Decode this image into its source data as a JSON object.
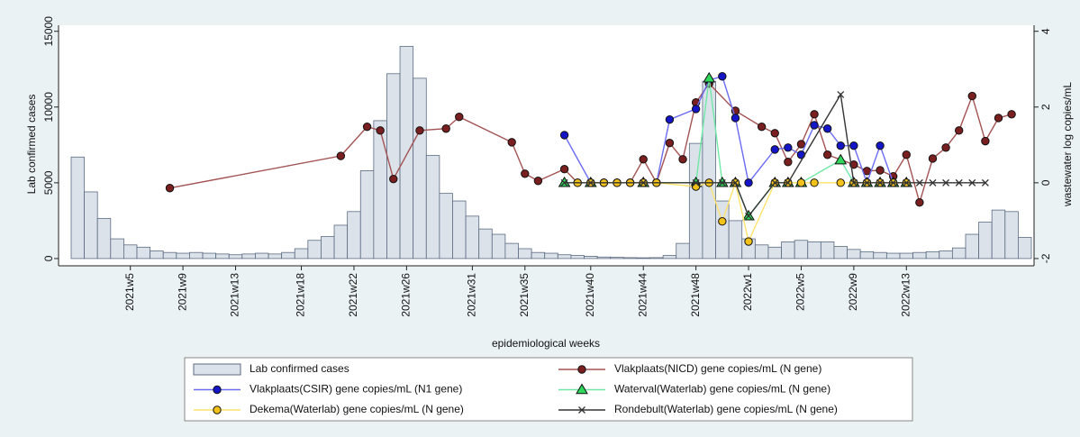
{
  "chart_data": {
    "type": "bar",
    "xlabel": "epidemiological weeks",
    "ylabel": "Lab confirmed cases",
    "y2label": "wastewater log copies/mL",
    "categories": [
      null,
      null,
      null,
      null,
      "2021w5",
      null,
      null,
      null,
      "2021w9",
      null,
      null,
      null,
      "2021w13",
      null,
      null,
      null,
      null,
      "2021w18",
      null,
      null,
      null,
      "2021w22",
      null,
      null,
      null,
      "2021w26",
      null,
      null,
      null,
      null,
      "2021w31",
      null,
      null,
      null,
      "2021w35",
      null,
      null,
      null,
      null,
      "2021w40",
      null,
      null,
      null,
      "2021w44",
      null,
      null,
      null,
      "2021w48",
      null,
      null,
      null,
      "2022w1",
      null,
      null,
      null,
      "2022w5",
      null,
      null,
      null,
      "2022w9",
      null,
      null,
      null,
      "2022w13",
      null,
      null,
      null,
      null,
      null,
      null,
      null,
      null,
      null
    ],
    "ylim": [
      -480,
      15400
    ],
    "yticks": [
      0,
      5000,
      10000,
      15000
    ],
    "y2lim": [
      -2.192,
      4.16
    ],
    "y2ticks": [
      -2,
      0,
      2,
      4
    ],
    "connect_missing": true,
    "series": [
      {
        "name": "Lab confirmed cases",
        "type": "bar",
        "color": "#dce2ea",
        "edge": "#5b6b82",
        "values": [
          6700,
          4400,
          2650,
          1300,
          900,
          750,
          500,
          400,
          350,
          400,
          350,
          300,
          250,
          300,
          350,
          300,
          400,
          650,
          1200,
          1450,
          2200,
          3100,
          5800,
          9100,
          12200,
          14000,
          11900,
          6800,
          4300,
          3800,
          2800,
          1950,
          1600,
          1000,
          650,
          400,
          350,
          250,
          200,
          150,
          100,
          80,
          60,
          50,
          60,
          200,
          1000,
          7600,
          11700,
          3800,
          2500,
          1300,
          900,
          750,
          1100,
          1200,
          1100,
          1100,
          800,
          600,
          450,
          400,
          350,
          350,
          400,
          450,
          500,
          700,
          1600,
          2400,
          3200,
          3100,
          1400
        ]
      },
      {
        "name": "Vlakplaats(NICD) gene copies/mL (N gene)",
        "type": "line",
        "axis": "y2",
        "color": "#a35353",
        "marker": "circle",
        "marker_color": "#7a1f1f",
        "values": [
          null,
          null,
          null,
          null,
          null,
          null,
          null,
          -0.14,
          null,
          null,
          null,
          null,
          null,
          null,
          null,
          null,
          null,
          null,
          null,
          null,
          0.71,
          null,
          1.48,
          1.38,
          0.1,
          null,
          1.38,
          null,
          1.43,
          1.74,
          null,
          null,
          null,
          1.07,
          0.24,
          0.05,
          null,
          0.36,
          0,
          0,
          0,
          0,
          0,
          0.62,
          0,
          1.05,
          0.62,
          2.12,
          2.62,
          null,
          1.9,
          null,
          1.48,
          1.31,
          0.55,
          1.02,
          1.81,
          0.74,
          null,
          0.48,
          0.31,
          0.33,
          0.17,
          0.74,
          -0.52,
          0.64,
          0.93,
          1.38,
          2.29,
          1.1,
          1.71,
          1.81,
          null
        ]
      },
      {
        "name": "Vlakplaats(CSIR) gene copies/mL (N1 gene)",
        "type": "line",
        "axis": "y2",
        "color": "#6a6cf5",
        "marker": "circle",
        "marker_color": "#1515c8",
        "values": [
          null,
          null,
          null,
          null,
          null,
          null,
          null,
          null,
          null,
          null,
          null,
          null,
          null,
          null,
          null,
          null,
          null,
          null,
          null,
          null,
          null,
          null,
          null,
          null,
          null,
          null,
          null,
          null,
          null,
          null,
          null,
          null,
          null,
          null,
          null,
          null,
          null,
          1.26,
          null,
          0,
          0,
          0,
          0,
          0,
          0,
          1.67,
          null,
          1.95,
          2.71,
          2.81,
          1.71,
          0,
          null,
          0.88,
          0.93,
          0.74,
          1.52,
          1.43,
          0.98,
          0.98,
          0,
          0.98,
          0,
          null,
          null,
          null,
          null,
          null,
          null,
          null,
          null,
          null,
          null
        ]
      },
      {
        "name": "Waterval(Waterlab) gene copies/mL (N gene)",
        "type": "line",
        "axis": "y2",
        "color": "#6fe8a6",
        "marker": "triangle",
        "marker_color": "#2fd85a",
        "values": [
          null,
          null,
          null,
          null,
          null,
          null,
          null,
          null,
          null,
          null,
          null,
          null,
          null,
          null,
          null,
          null,
          null,
          null,
          null,
          null,
          null,
          null,
          null,
          null,
          null,
          null,
          null,
          null,
          null,
          null,
          null,
          null,
          null,
          null,
          null,
          null,
          null,
          0,
          null,
          0,
          null,
          null,
          null,
          0,
          null,
          null,
          null,
          0,
          2.76,
          0,
          0,
          -0.88,
          null,
          0,
          0,
          0,
          null,
          null,
          0.6,
          0,
          0,
          0,
          0,
          0,
          null,
          null,
          null,
          null,
          null,
          null,
          null,
          null,
          null
        ]
      },
      {
        "name": "Dekema(Waterlab) gene copies/mL (N gene)",
        "type": "line",
        "axis": "y2",
        "color": "#ffe36b",
        "marker": "circle",
        "marker_color": "#f2c21b",
        "values": [
          null,
          null,
          null,
          null,
          null,
          null,
          null,
          null,
          null,
          null,
          null,
          null,
          null,
          null,
          null,
          null,
          null,
          null,
          null,
          null,
          null,
          null,
          null,
          null,
          null,
          null,
          null,
          null,
          null,
          null,
          null,
          null,
          null,
          null,
          null,
          null,
          null,
          null,
          0,
          0,
          0,
          0,
          0,
          0,
          0,
          null,
          null,
          -0.1,
          0,
          -1.02,
          0,
          -1.55,
          null,
          0,
          0,
          0,
          0,
          null,
          0,
          0,
          0,
          0,
          0,
          0,
          null,
          null,
          null,
          null,
          null,
          null,
          null,
          null,
          null
        ]
      },
      {
        "name": "Rondebult(Waterlab) gene copies/mL (N gene)",
        "type": "line",
        "axis": "y2",
        "color": "#333333",
        "marker": "x",
        "marker_color": "#333333",
        "values": [
          null,
          null,
          null,
          null,
          null,
          null,
          null,
          null,
          null,
          null,
          null,
          null,
          null,
          null,
          null,
          null,
          null,
          null,
          null,
          null,
          null,
          null,
          null,
          null,
          null,
          null,
          null,
          null,
          null,
          null,
          null,
          null,
          null,
          null,
          null,
          null,
          null,
          0,
          null,
          0,
          null,
          null,
          null,
          0,
          null,
          null,
          null,
          0,
          null,
          0,
          0,
          -0.88,
          null,
          0,
          0,
          null,
          null,
          null,
          2.33,
          0,
          0,
          0,
          0,
          0,
          0,
          0,
          0,
          0,
          0,
          0,
          null,
          null,
          null
        ]
      }
    ]
  }
}
